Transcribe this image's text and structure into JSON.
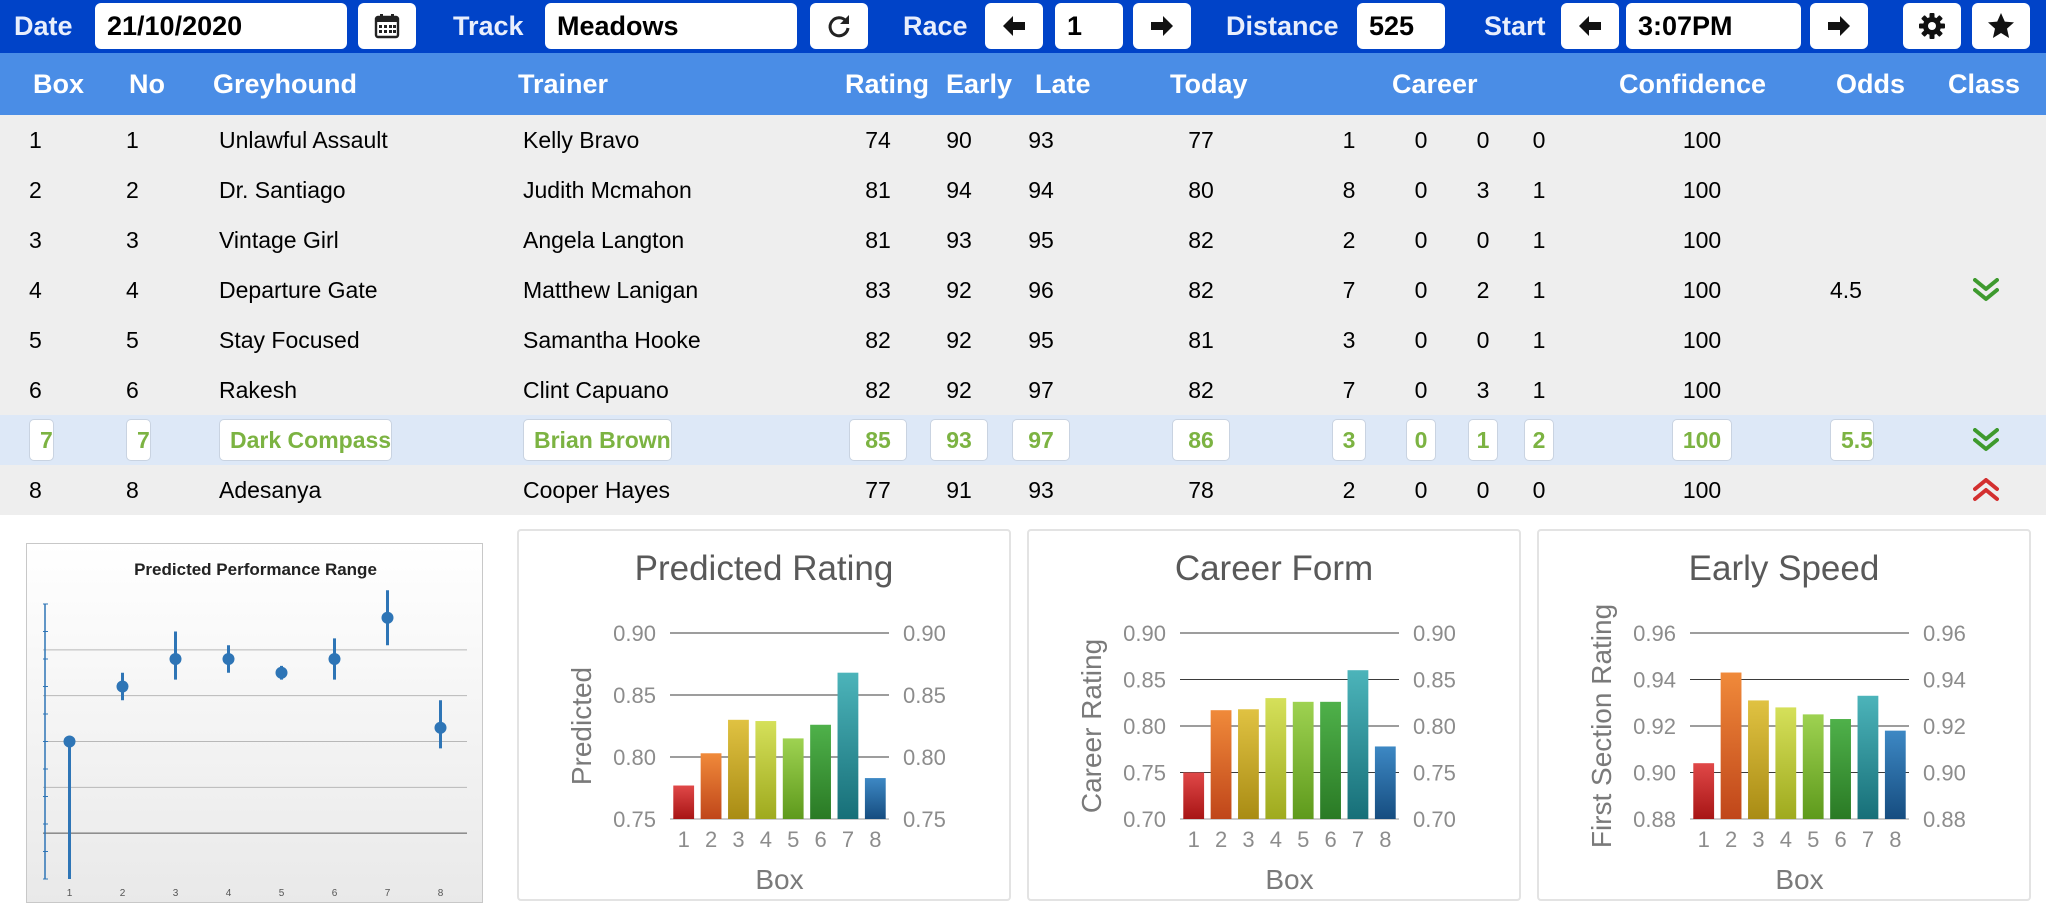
{
  "toolbar": {
    "date_label": "Date",
    "date_value": "21/10/2020",
    "track_label": "Track",
    "track_value": "Meadows",
    "race_label": "Race",
    "race_value": "1",
    "distance_label": "Distance",
    "distance_value": "525",
    "start_label": "Start",
    "start_value": "3:07PM",
    "icons": [
      "calendar-icon",
      "refresh-icon",
      "arrow-left-icon",
      "arrow-right-icon",
      "gear-icon",
      "star-icon"
    ]
  },
  "table": {
    "headers": {
      "box": "Box",
      "no": "No",
      "greyhound": "Greyhound",
      "trainer": "Trainer",
      "rating": "Rating",
      "early": "Early",
      "late": "Late",
      "today": "Today",
      "career": "Career",
      "confidence": "Confidence",
      "odds": "Odds",
      "class": "Class"
    },
    "rows": [
      {
        "box": "1",
        "no": "1",
        "greyhound": "Unlawful Assault",
        "trainer": "Kelly Bravo",
        "rating": "74",
        "early": "90",
        "late": "93",
        "today": "77",
        "c1": "1",
        "c2": "0",
        "c3": "0",
        "c4": "0",
        "confidence": "100",
        "odds": "",
        "class": ""
      },
      {
        "box": "2",
        "no": "2",
        "greyhound": "Dr. Santiago",
        "trainer": "Judith Mcmahon",
        "rating": "81",
        "early": "94",
        "late": "94",
        "today": "80",
        "c1": "8",
        "c2": "0",
        "c3": "3",
        "c4": "1",
        "confidence": "100",
        "odds": "",
        "class": ""
      },
      {
        "box": "3",
        "no": "3",
        "greyhound": "Vintage Girl",
        "trainer": "Angela Langton",
        "rating": "81",
        "early": "93",
        "late": "95",
        "today": "82",
        "c1": "2",
        "c2": "0",
        "c3": "0",
        "c4": "1",
        "confidence": "100",
        "odds": "",
        "class": ""
      },
      {
        "box": "4",
        "no": "4",
        "greyhound": "Departure Gate",
        "trainer": "Matthew Lanigan",
        "rating": "83",
        "early": "92",
        "late": "96",
        "today": "82",
        "c1": "7",
        "c2": "0",
        "c3": "2",
        "c4": "1",
        "confidence": "100",
        "odds": "4.5",
        "class": "down"
      },
      {
        "box": "5",
        "no": "5",
        "greyhound": "Stay Focused",
        "trainer": "Samantha Hooke",
        "rating": "82",
        "early": "92",
        "late": "95",
        "today": "81",
        "c1": "3",
        "c2": "0",
        "c3": "0",
        "c4": "1",
        "confidence": "100",
        "odds": "",
        "class": ""
      },
      {
        "box": "6",
        "no": "6",
        "greyhound": "Rakesh",
        "trainer": "Clint Capuano",
        "rating": "82",
        "early": "92",
        "late": "97",
        "today": "82",
        "c1": "7",
        "c2": "0",
        "c3": "3",
        "c4": "1",
        "confidence": "100",
        "odds": "",
        "class": ""
      },
      {
        "box": "7",
        "no": "7",
        "greyhound": "Dark Compass",
        "trainer": "Brian Brown",
        "rating": "85",
        "early": "93",
        "late": "97",
        "today": "86",
        "c1": "3",
        "c2": "0",
        "c3": "1",
        "c4": "2",
        "confidence": "100",
        "odds": "5.5",
        "class": "down"
      },
      {
        "box": "8",
        "no": "8",
        "greyhound": "Adesanya",
        "trainer": "Cooper Hayes",
        "rating": "77",
        "early": "91",
        "late": "93",
        "today": "78",
        "c1": "2",
        "c2": "0",
        "c3": "0",
        "c4": "0",
        "confidence": "100",
        "odds": "",
        "class": "up"
      }
    ],
    "selected_row": 6,
    "class_colors": {
      "down": "#3e9a2e",
      "up": "#d32f2f"
    },
    "selected_text_color": "#7cb342"
  },
  "chart_data": [
    {
      "type": "scatter",
      "title": "Predicted Performance Range",
      "categories": [
        "1",
        "2",
        "3",
        "4",
        "5",
        "6",
        "7",
        "8"
      ],
      "values": [
        0.8,
        0.84,
        0.86,
        0.86,
        0.85,
        0.86,
        0.89,
        0.81
      ],
      "error_high": [
        null,
        0.85,
        0.88,
        0.87,
        0.855,
        0.875,
        0.91,
        0.83
      ],
      "error_low": [
        0.7,
        0.83,
        0.845,
        0.85,
        0.845,
        0.845,
        0.87,
        0.795
      ],
      "ylim": [
        0.7,
        0.9
      ],
      "grid": true,
      "color": "#2e75b6"
    },
    {
      "type": "bar",
      "title": "Predicted Rating",
      "xlabel": "Box",
      "ylabel": "Predicted",
      "categories": [
        "1",
        "2",
        "3",
        "4",
        "5",
        "6",
        "7",
        "8"
      ],
      "values": [
        0.777,
        0.803,
        0.83,
        0.829,
        0.815,
        0.826,
        0.868,
        0.783
      ],
      "ylim": [
        0.75,
        0.9
      ],
      "yticks": [
        "0.75",
        "0.80",
        "0.85",
        "0.90"
      ],
      "grid": true
    },
    {
      "type": "bar",
      "title": "Career Form",
      "xlabel": "Box",
      "ylabel": "Career Rating",
      "categories": [
        "1",
        "2",
        "3",
        "4",
        "5",
        "6",
        "7",
        "8"
      ],
      "values": [
        0.75,
        0.817,
        0.818,
        0.83,
        0.826,
        0.826,
        0.86,
        0.778
      ],
      "ylim": [
        0.7,
        0.9
      ],
      "yticks": [
        "0.70",
        "0.75",
        "0.80",
        "0.85",
        "0.90"
      ],
      "grid": true
    },
    {
      "type": "bar",
      "title": "Early Speed",
      "xlabel": "Box",
      "ylabel": "First Section Rating",
      "categories": [
        "1",
        "2",
        "3",
        "4",
        "5",
        "6",
        "7",
        "8"
      ],
      "values": [
        0.904,
        0.943,
        0.931,
        0.928,
        0.925,
        0.923,
        0.933,
        0.918
      ],
      "ylim": [
        0.88,
        0.96
      ],
      "yticks": [
        "0.88",
        "0.90",
        "0.92",
        "0.94",
        "0.96"
      ],
      "grid": true
    }
  ],
  "bar_colors": [
    [
      "#e04848",
      "#a81515"
    ],
    [
      "#f08a3a",
      "#c0461a"
    ],
    [
      "#e0c242",
      "#a98c14"
    ],
    [
      "#d5e05a",
      "#9faa1e"
    ],
    [
      "#9ed251",
      "#5e9a1c"
    ],
    [
      "#4fb14a",
      "#2a7a25"
    ],
    [
      "#4cb4ba",
      "#176f78"
    ],
    [
      "#3d88c4",
      "#164d80"
    ]
  ]
}
